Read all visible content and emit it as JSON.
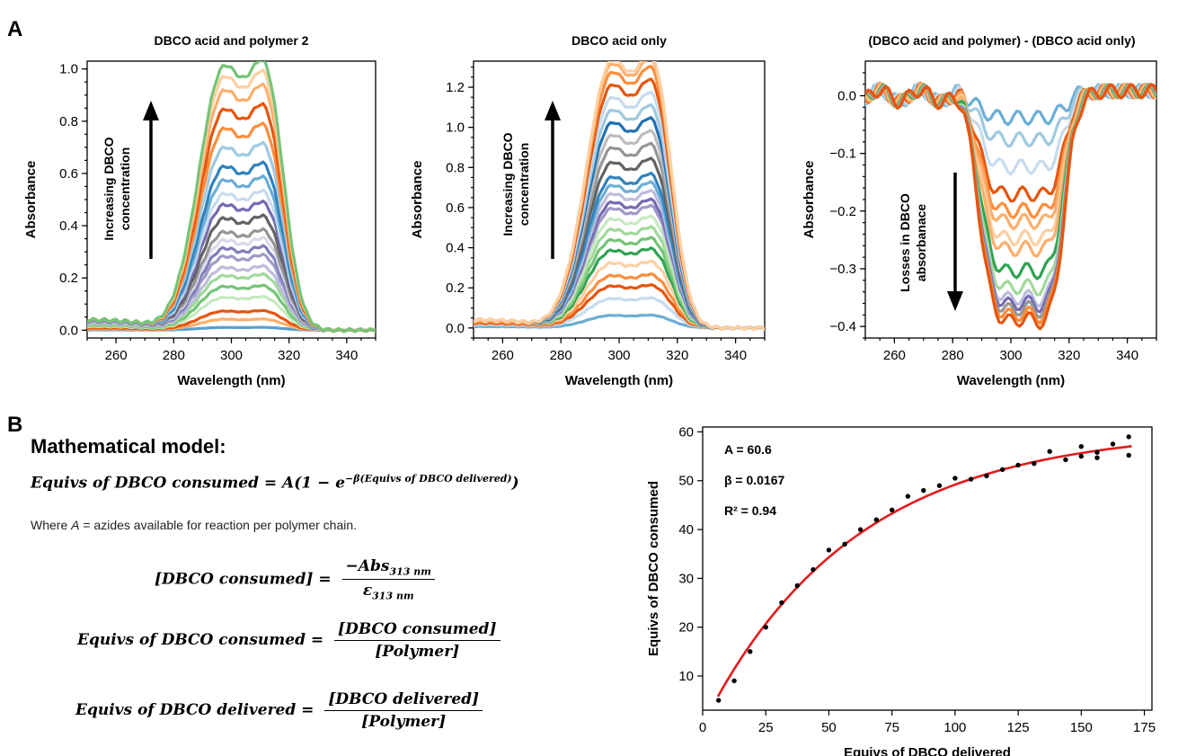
{
  "panel_labels": {
    "a": "A",
    "b": "B"
  },
  "model": {
    "title": "Mathematical model:",
    "eq1_lhs": "Equivs of DBCO consumed",
    "eq1_rhs_prefix": "= A(1 − e",
    "eq1_exponent": "−β(Equivs of DBCO delivered)",
    "eq1_close": ")",
    "where_prefix": "Where ",
    "where_var": "A",
    "where_rest": " = azides available for reaction per polymer chain.",
    "eq2_lhs": "[DBCO consumed] =",
    "eq2_num": "−Abs",
    "eq2_num_sub": "313 nm",
    "eq2_den": "ε",
    "eq2_den_sub": "313 nm",
    "eq3_lhs": "Equivs of DBCO consumed =",
    "eq3_num": "[DBCO consumed]",
    "eq3_den": "[Polymer]",
    "eq4_lhs": "Equivs of DBCO delivered =",
    "eq4_num": "[DBCO delivered]",
    "eq4_den": "[Polymer]"
  },
  "chart_data": [
    {
      "type": "line",
      "title": "DBCO acid and polymer 2",
      "xlabel": "Wavelength (nm)",
      "ylabel": "Absorbance",
      "xlim": [
        250,
        350
      ],
      "ylim": [
        -0.03,
        1.03
      ],
      "xticks": [
        260,
        280,
        300,
        320,
        340
      ],
      "yticks": [
        0.0,
        0.2,
        0.4,
        0.6,
        0.8,
        1.0
      ],
      "ytick_labels": [
        "0.0",
        "0.2",
        "0.4",
        "0.6",
        "0.8",
        "1.0"
      ],
      "annotation": [
        "Increasing DBCO",
        "concentration"
      ],
      "arrow": "up",
      "series_peak_297nm": [
        0.01,
        0.04,
        0.07,
        0.12,
        0.16,
        0.2,
        0.23,
        0.27,
        0.3,
        0.33,
        0.36,
        0.41,
        0.46,
        0.5,
        0.55,
        0.6,
        0.67,
        0.74,
        0.81,
        0.88,
        0.93,
        0.97
      ],
      "series_colors": [
        "#5aa0d0",
        "#fdae6b",
        "#e6550d",
        "#c7e9c0",
        "#74c476",
        "#a1d99b",
        "#bcbddc",
        "#9e9ac8",
        "#807dba",
        "#dadaeb",
        "#969696",
        "#636363",
        "#756bb1",
        "#c6dbef",
        "#6baed6",
        "#3182bd",
        "#9ecae1",
        "#fd8d3c",
        "#e6550d",
        "#fdae6b",
        "#fdd0a2",
        "#74c476"
      ]
    },
    {
      "type": "line",
      "title": "DBCO acid only",
      "xlabel": "Wavelength (nm)",
      "ylabel": "Absorbance",
      "xlim": [
        250,
        350
      ],
      "ylim": [
        -0.05,
        1.33
      ],
      "xticks": [
        260,
        280,
        300,
        320,
        340
      ],
      "yticks": [
        0.0,
        0.2,
        0.4,
        0.6,
        0.8,
        1.0,
        1.2
      ],
      "ytick_labels": [
        "0.0",
        "0.2",
        "0.4",
        "0.6",
        "0.8",
        "1.0",
        "1.2"
      ],
      "annotation": [
        "Increasing DBCO",
        "concentration"
      ],
      "arrow": "up",
      "series_peak_297nm": [
        0.06,
        0.14,
        0.2,
        0.25,
        0.31,
        0.37,
        0.42,
        0.47,
        0.52,
        0.57,
        0.6,
        0.64,
        0.68,
        0.72,
        0.79,
        0.86,
        0.92,
        0.98,
        1.04,
        1.1,
        1.16,
        1.22,
        1.26,
        1.28
      ],
      "series_colors": [
        "#6baed6",
        "#c6dbef",
        "#e6550d",
        "#fd8d3c",
        "#fdd0a2",
        "#31a354",
        "#74c476",
        "#a1d99b",
        "#c7e9c0",
        "#9e9ac8",
        "#756bb1",
        "#bcbddc",
        "#6baed6",
        "#3182bd",
        "#636363",
        "#969696",
        "#bdbdbd",
        "#2171b5",
        "#9ecae1",
        "#c6dbef",
        "#e6550d",
        "#fd8d3c",
        "#fdae6b",
        "#fdd0a2"
      ]
    },
    {
      "type": "line",
      "title": "(DBCO acid and polymer) - (DBCO acid only)",
      "xlabel": "Wavelength (nm)",
      "ylabel": "Absorbance",
      "xlim": [
        250,
        350
      ],
      "ylim": [
        -0.42,
        0.06
      ],
      "xticks": [
        260,
        280,
        300,
        320,
        340
      ],
      "yticks": [
        0.0,
        -0.1,
        -0.2,
        -0.3,
        -0.4
      ],
      "ytick_labels": [
        "0.0",
        "−0.1",
        "−0.2",
        "−0.3",
        "−0.4"
      ],
      "annotation": [
        "Losses in DBCO",
        "absorbanace"
      ],
      "arrow": "down",
      "series_trough_313nm": [
        -0.04,
        -0.08,
        -0.13,
        -0.18,
        -0.21,
        -0.23,
        -0.26,
        -0.28,
        -0.32,
        -0.35,
        -0.37,
        -0.38,
        -0.39,
        -0.4,
        -0.4,
        -0.41
      ],
      "series_colors": [
        "#6baed6",
        "#9ecae1",
        "#c6dbef",
        "#e6550d",
        "#fd8d3c",
        "#fdae6b",
        "#fdd0a2",
        "#fdae6b",
        "#31a354",
        "#a1d99b",
        "#bcbddc",
        "#756bb1",
        "#969696",
        "#636363",
        "#fd8d3c",
        "#e6550d"
      ]
    },
    {
      "type": "scatter",
      "title": "",
      "xlabel": "Equivs of DBCO delivered",
      "ylabel": "Equivs of DBCO consumed",
      "xlim": [
        0,
        178
      ],
      "ylim": [
        3,
        61
      ],
      "xticks": [
        0,
        25,
        50,
        75,
        100,
        125,
        150,
        175
      ],
      "yticks": [
        10,
        20,
        30,
        40,
        50,
        60
      ],
      "fit_params": {
        "A": 60.6,
        "beta": 0.0167
      },
      "stats": [
        "A = 60.6",
        "β = 0.0167",
        "R² = 0.94"
      ],
      "points_x": [
        6.3,
        12.5,
        18.8,
        25,
        31.3,
        37.5,
        43.8,
        50,
        56.3,
        62.5,
        68.8,
        75,
        81.3,
        87.5,
        93.8,
        100,
        106.3,
        112.5,
        118.8,
        125,
        131.3,
        137.5,
        143.8,
        150,
        150,
        156.3,
        156.3,
        162.5,
        168.8,
        168.8
      ],
      "points_y": [
        5,
        9,
        15,
        20,
        25,
        28.5,
        31.8,
        35.8,
        37,
        40,
        42,
        44,
        46.8,
        48,
        49,
        50.5,
        50.3,
        51,
        52.3,
        53.2,
        53.5,
        56,
        54.3,
        57,
        55,
        55.8,
        54.7,
        57.5,
        59,
        55.2
      ],
      "fit_color": "#e31a1c",
      "point_color": "#000000"
    }
  ]
}
